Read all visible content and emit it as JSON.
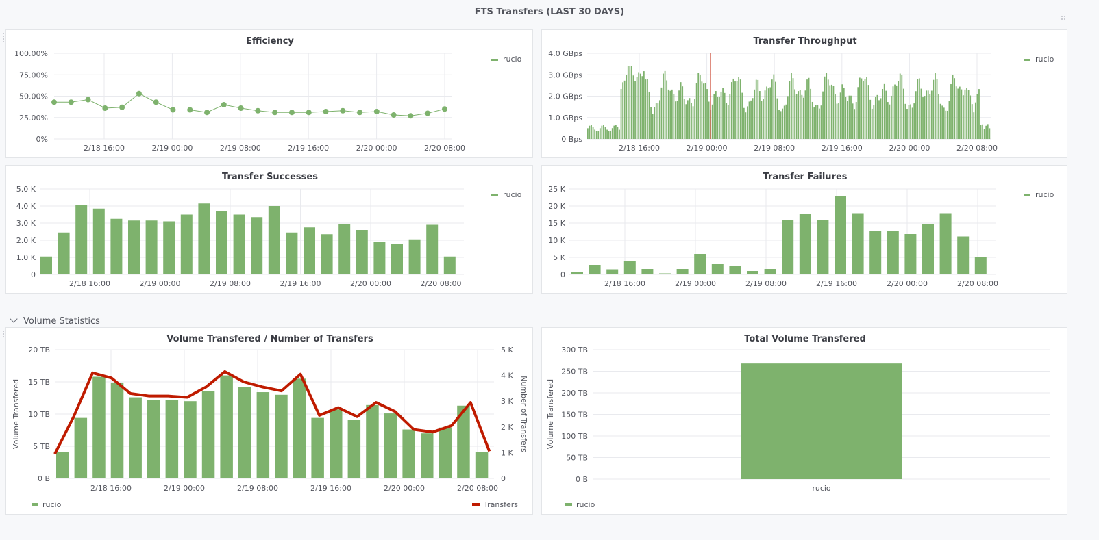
{
  "dashboard": {
    "title": "FTS Transfers (LAST 30 DAYS)",
    "row_title": "Volume Statistics",
    "colors": {
      "series": "#7eb26d",
      "transfers": "#bf1b00",
      "grid": "#e9eaee",
      "text": "#52545c",
      "marker": "#bf1b00"
    }
  },
  "time_ticks": [
    "2/18 16:00",
    "2/19 00:00",
    "2/19 08:00",
    "2/19 16:00",
    "2/20 00:00",
    "2/20 08:00"
  ],
  "panels": {
    "efficiency": {
      "title": "Efficiency",
      "legend": "rucio",
      "chart_data": {
        "type": "line",
        "y_ticks": [
          "100.00%",
          "75.00%",
          "50.00%",
          "25.00%",
          "0%"
        ],
        "ylim": [
          0,
          100
        ],
        "series": [
          {
            "name": "rucio",
            "values": [
              43,
              43,
              46,
              36,
              37,
              53,
              43,
              34,
              34,
              31,
              40,
              36,
              33,
              31,
              31,
              31,
              32,
              33,
              31,
              32,
              28,
              27,
              30,
              35
            ]
          }
        ]
      }
    },
    "throughput": {
      "title": "Transfer Throughput",
      "legend": "rucio",
      "chart_data": {
        "type": "bar",
        "y_ticks": [
          "4.0 GBps",
          "3.0 GBps",
          "2.0 GBps",
          "1.0 GBps",
          "0 Bps"
        ],
        "ylim": [
          0,
          4.0
        ],
        "unit": "GBps",
        "highlight_time": "2/19 00:00"
      }
    },
    "successes": {
      "title": "Transfer Successes",
      "legend": "rucio",
      "chart_data": {
        "type": "bar",
        "y_ticks": [
          "5.0 K",
          "4.0 K",
          "3.0 K",
          "2.0 K",
          "1.0 K",
          "0"
        ],
        "ylim": [
          0,
          5000
        ],
        "series": [
          {
            "name": "rucio",
            "values": [
              1050,
              2450,
              4050,
              3850,
              3250,
              3150,
              3150,
              3100,
              3500,
              4150,
              3700,
              3500,
              3350,
              4000,
              2450,
              2750,
              2350,
              2950,
              2600,
              1900,
              1800,
              2050,
              2900,
              1050
            ]
          }
        ]
      }
    },
    "failures": {
      "title": "Transfer Failures",
      "legend": "rucio",
      "chart_data": {
        "type": "bar",
        "y_ticks": [
          "25 K",
          "20 K",
          "15 K",
          "10 K",
          "5 K",
          "0"
        ],
        "ylim": [
          0,
          25000
        ],
        "series": [
          {
            "name": "rucio",
            "values": [
              700,
              2800,
              1500,
              3800,
              1600,
              300,
              1600,
              6000,
              3000,
              2500,
              1000,
              1600,
              16000,
              17700,
              16000,
              22900,
              17900,
              12700,
              12600,
              11800,
              14700,
              17900,
              11100,
              5000
            ]
          }
        ]
      }
    },
    "volume": {
      "title": "Volume Transfered / Number of Transfers",
      "legend_left": "rucio",
      "legend_right": "Transfers",
      "y_label_left": "Volume Transfered",
      "y_label_right": "Number of Transfers",
      "chart_data": {
        "type": "bar",
        "y_ticks_left": [
          "20 TB",
          "15 TB",
          "10 TB",
          "5 TB",
          "0 B"
        ],
        "y_ticks_right": [
          "5 K",
          "4 K",
          "3 K",
          "2 K",
          "1 K",
          "0"
        ],
        "ylim_left": [
          0,
          20
        ],
        "ylim_right": [
          0,
          5000
        ],
        "series": [
          {
            "name": "rucio",
            "values": [
              4.1,
              9.4,
              15.8,
              14.9,
              12.6,
              12.2,
              12.2,
              12.0,
              13.6,
              16.0,
              14.2,
              13.4,
              13.0,
              15.5,
              9.4,
              10.7,
              9.1,
              11.4,
              10.1,
              7.6,
              7.0,
              7.9,
              11.3,
              4.1
            ]
          },
          {
            "name": "Transfers",
            "values": [
              950,
              2400,
              4100,
              3900,
              3300,
              3200,
              3200,
              3150,
              3550,
              4150,
              3750,
              3550,
              3400,
              4050,
              2450,
              2750,
              2400,
              2950,
              2600,
              1900,
              1800,
              2050,
              2950,
              1050
            ]
          }
        ]
      }
    },
    "total_volume": {
      "title": "Total Volume Transfered",
      "legend": "rucio",
      "y_label": "Volume Transfered",
      "chart_data": {
        "type": "bar",
        "categories": [
          "rucio"
        ],
        "values": [
          268
        ],
        "y_ticks": [
          "300 TB",
          "250 TB",
          "200 TB",
          "150 TB",
          "100 TB",
          "50 TB",
          "0 B"
        ],
        "ylim": [
          0,
          300
        ]
      }
    }
  }
}
